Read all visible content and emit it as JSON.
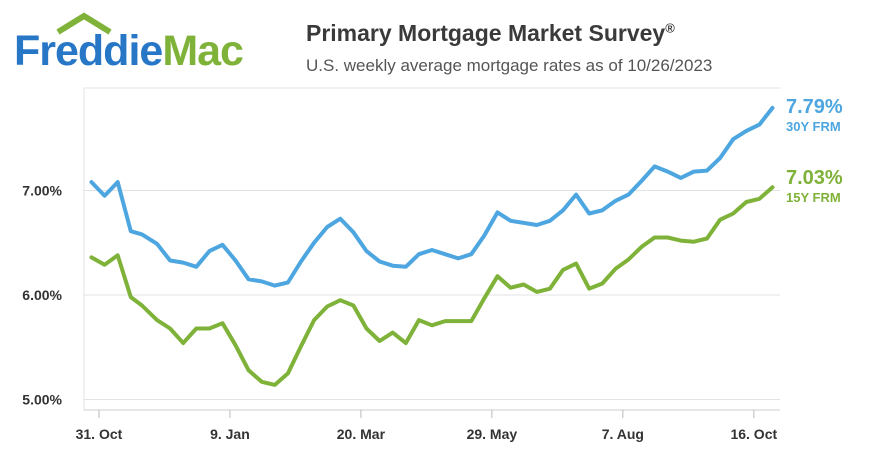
{
  "logo": {
    "part1": "Freddie",
    "part2": "Mac"
  },
  "header": {
    "title": "Primary Mortgage Market Survey",
    "title_mark": "®",
    "subtitle": "U.S. weekly average mortgage rates as of 10/26/2023"
  },
  "colors": {
    "frm30": "#4da6e0",
    "frm15": "#7fb239",
    "grid": "#e3e3e3",
    "text": "#333333"
  },
  "chart_data": {
    "type": "line",
    "title": "Primary Mortgage Market Survey",
    "subtitle": "U.S. weekly average mortgage rates as of 10/26/2023",
    "x": [
      "2022-10-27",
      "2022-11-03",
      "2022-11-10",
      "2022-11-17",
      "2022-11-23",
      "2022-12-01",
      "2022-12-08",
      "2022-12-15",
      "2022-12-22",
      "2022-12-29",
      "2023-01-05",
      "2023-01-12",
      "2023-01-19",
      "2023-01-26",
      "2023-02-02",
      "2023-02-09",
      "2023-02-16",
      "2023-02-23",
      "2023-03-02",
      "2023-03-09",
      "2023-03-16",
      "2023-03-23",
      "2023-03-30",
      "2023-04-06",
      "2023-04-13",
      "2023-04-20",
      "2023-04-27",
      "2023-05-04",
      "2023-05-11",
      "2023-05-18",
      "2023-05-25",
      "2023-06-01",
      "2023-06-08",
      "2023-06-15",
      "2023-06-22",
      "2023-06-29",
      "2023-07-06",
      "2023-07-13",
      "2023-07-20",
      "2023-07-27",
      "2023-08-03",
      "2023-08-10",
      "2023-08-17",
      "2023-08-24",
      "2023-08-31",
      "2023-09-07",
      "2023-09-14",
      "2023-09-21",
      "2023-09-28",
      "2023-10-05",
      "2023-10-12",
      "2023-10-19",
      "2023-10-26"
    ],
    "series": [
      {
        "name": "30Y FRM",
        "color": "#4da6e0",
        "values": [
          7.08,
          6.95,
          7.08,
          6.61,
          6.58,
          6.49,
          6.33,
          6.31,
          6.27,
          6.42,
          6.48,
          6.33,
          6.15,
          6.13,
          6.09,
          6.12,
          6.32,
          6.5,
          6.65,
          6.73,
          6.6,
          6.42,
          6.32,
          6.28,
          6.27,
          6.39,
          6.43,
          6.39,
          6.35,
          6.39,
          6.57,
          6.79,
          6.71,
          6.69,
          6.67,
          6.71,
          6.81,
          6.96,
          6.78,
          6.81,
          6.9,
          6.96,
          7.09,
          7.23,
          7.18,
          7.12,
          7.18,
          7.19,
          7.31,
          7.49,
          7.57,
          7.63,
          7.79
        ]
      },
      {
        "name": "15Y FRM",
        "color": "#7fb239",
        "values": [
          6.36,
          6.29,
          6.38,
          5.98,
          5.9,
          5.76,
          5.68,
          5.54,
          5.68,
          5.68,
          5.73,
          5.52,
          5.28,
          5.17,
          5.14,
          5.25,
          5.51,
          5.76,
          5.89,
          5.95,
          5.9,
          5.68,
          5.56,
          5.64,
          5.54,
          5.76,
          5.71,
          5.75,
          5.75,
          5.75,
          5.97,
          6.18,
          6.07,
          6.1,
          6.03,
          6.06,
          6.24,
          6.3,
          6.06,
          6.11,
          6.25,
          6.34,
          6.46,
          6.55,
          6.55,
          6.52,
          6.51,
          6.54,
          6.72,
          6.78,
          6.89,
          6.92,
          7.03
        ]
      }
    ],
    "end_labels": [
      {
        "value": "7.79%",
        "name": "30Y FRM"
      },
      {
        "value": "7.03%",
        "name": "15Y FRM"
      }
    ],
    "yticks": [
      "5.00%",
      "6.00%",
      "7.00%"
    ],
    "ytick_values": [
      5,
      6,
      7
    ],
    "ylim": [
      4.9,
      7.98
    ],
    "xticks": [
      {
        "label": "31. Oct",
        "date": "2022-10-31"
      },
      {
        "label": "9. Jan",
        "date": "2023-01-09"
      },
      {
        "label": "20. Mar",
        "date": "2023-03-20"
      },
      {
        "label": "29. May",
        "date": "2023-05-29"
      },
      {
        "label": "7. Aug",
        "date": "2023-08-07"
      },
      {
        "label": "16. Oct",
        "date": "2023-10-16"
      }
    ],
    "xlim": [
      "2022-10-23",
      "2023-10-30"
    ],
    "grid": true,
    "legend": "none"
  }
}
